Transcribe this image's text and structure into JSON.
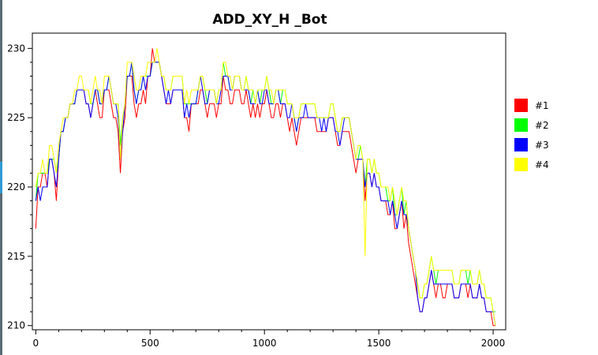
{
  "chart_data": {
    "type": "line",
    "title": "ADD_XY_H _Bot",
    "xlabel": "",
    "ylabel": "",
    "xlim": [
      -15,
      2055
    ],
    "ylim": [
      209.7,
      231.1
    ],
    "xticks": [
      0,
      500,
      1000,
      1500,
      2000
    ],
    "yticks": [
      210,
      215,
      220,
      225,
      230
    ],
    "grid": false,
    "legend_position": "right",
    "colors": {
      "#1": "#ff0000",
      "#2": "#00ff00",
      "#3": "#0000ff",
      "#4": "#ffff00",
      "plot_border": "#000000",
      "background": "#ffffff"
    },
    "x_step": 10,
    "series": [
      {
        "name": "#1",
        "color": "#ff0000",
        "values": [
          217,
          220,
          220,
          221,
          221,
          220,
          222,
          222,
          221,
          219,
          222,
          224,
          224,
          225,
          225,
          226,
          226,
          226,
          227,
          227,
          227,
          227,
          226,
          226,
          225,
          226,
          227,
          226,
          225,
          225,
          227,
          227,
          227,
          226,
          225,
          225,
          224,
          221,
          224,
          225,
          228,
          228,
          228,
          226,
          225,
          226,
          226,
          227,
          226,
          228,
          228,
          230,
          229,
          229,
          229,
          228,
          227,
          226,
          226,
          226,
          227,
          227,
          227,
          227,
          227,
          225,
          225,
          224,
          226,
          226,
          226,
          226,
          227,
          227,
          226,
          225,
          226,
          226,
          226,
          225,
          226,
          226,
          228,
          227,
          227,
          226,
          226,
          227,
          227,
          227,
          226,
          226,
          227,
          226,
          225,
          226,
          225,
          226,
          225,
          226,
          226,
          227,
          226,
          225,
          225,
          226,
          226,
          225,
          226,
          226,
          225,
          224,
          225,
          224,
          223,
          224,
          225,
          225,
          225,
          225,
          225,
          225,
          225,
          224,
          224,
          224,
          224,
          224,
          225,
          225,
          225,
          224,
          223,
          223,
          224,
          224,
          224,
          224,
          223,
          222,
          221,
          222,
          222,
          222,
          219,
          221,
          221,
          220,
          221,
          220,
          220,
          219,
          219,
          219,
          218,
          218,
          219,
          217,
          217,
          218,
          219,
          217,
          218,
          216,
          215,
          214,
          213,
          212,
          211,
          211,
          212,
          212,
          213,
          214,
          213,
          212,
          213,
          213,
          212,
          212,
          213,
          213,
          213,
          212,
          212,
          212,
          213,
          213,
          213,
          212,
          213,
          212,
          212,
          212,
          213,
          212,
          212,
          211,
          211,
          211,
          210,
          210
        ]
      },
      {
        "name": "#2",
        "color": "#00ff00",
        "values": [
          219,
          221,
          221,
          221,
          221,
          221,
          222,
          222,
          222,
          221,
          222,
          224,
          224,
          225,
          225,
          226,
          226,
          226,
          227,
          227,
          227,
          227,
          227,
          227,
          226,
          226,
          227,
          227,
          226,
          226,
          227,
          227,
          228,
          227,
          226,
          226,
          226,
          223,
          225,
          226,
          228,
          228,
          229,
          227,
          226,
          227,
          227,
          228,
          228,
          228,
          228,
          229,
          229,
          229,
          229,
          228,
          228,
          227,
          227,
          227,
          228,
          228,
          228,
          228,
          228,
          226,
          226,
          226,
          226,
          226,
          226,
          227,
          228,
          228,
          227,
          226,
          227,
          227,
          227,
          226,
          227,
          227,
          229,
          228,
          228,
          227,
          227,
          228,
          228,
          228,
          227,
          227,
          228,
          227,
          226,
          227,
          226,
          227,
          226,
          227,
          227,
          228,
          227,
          226,
          226,
          227,
          227,
          226,
          227,
          227,
          226,
          226,
          226,
          225,
          224,
          225,
          226,
          226,
          226,
          226,
          226,
          226,
          226,
          225,
          225,
          225,
          225,
          225,
          225,
          226,
          226,
          225,
          224,
          224,
          225,
          225,
          225,
          225,
          224,
          223,
          222,
          222,
          223,
          222,
          220,
          222,
          222,
          221,
          222,
          221,
          221,
          220,
          220,
          220,
          219,
          219,
          220,
          218,
          218,
          219,
          220,
          218,
          219,
          217,
          216,
          215,
          214,
          213,
          212,
          212,
          213,
          213,
          214,
          215,
          214,
          213,
          214,
          214,
          214,
          214,
          214,
          214,
          214,
          213,
          213,
          213,
          214,
          214,
          214,
          213,
          214,
          213,
          213,
          213,
          214,
          213,
          213,
          212,
          212,
          212,
          211,
          211
        ]
      },
      {
        "name": "#3",
        "color": "#0000ff",
        "values": [
          219,
          220,
          219,
          220,
          220,
          220,
          222,
          222,
          221,
          220,
          222,
          224,
          224,
          225,
          225,
          226,
          226,
          226,
          227,
          227,
          227,
          227,
          226,
          226,
          225,
          226,
          227,
          227,
          226,
          226,
          227,
          227,
          228,
          227,
          226,
          226,
          225,
          222,
          224,
          226,
          228,
          228,
          229,
          227,
          226,
          227,
          227,
          228,
          227,
          228,
          228,
          229,
          229,
          229,
          229,
          228,
          227,
          226,
          227,
          226,
          227,
          227,
          227,
          227,
          227,
          225,
          226,
          225,
          226,
          226,
          226,
          227,
          228,
          227,
          226,
          226,
          227,
          227,
          227,
          226,
          226,
          227,
          228,
          228,
          228,
          227,
          227,
          228,
          228,
          228,
          227,
          227,
          227,
          227,
          226,
          226,
          226,
          227,
          226,
          226,
          227,
          227,
          226,
          226,
          226,
          227,
          227,
          226,
          226,
          226,
          225,
          225,
          226,
          225,
          224,
          225,
          225,
          225,
          226,
          225,
          225,
          225,
          225,
          225,
          225,
          224,
          225,
          224,
          225,
          225,
          225,
          224,
          224,
          223,
          224,
          225,
          225,
          225,
          224,
          223,
          222,
          222,
          222,
          222,
          220,
          221,
          221,
          220,
          221,
          220,
          220,
          219,
          219,
          219,
          219,
          218,
          219,
          218,
          217,
          218,
          219,
          218,
          218,
          217,
          216,
          215,
          214,
          212,
          211,
          211,
          212,
          212,
          213,
          214,
          213,
          213,
          213,
          213,
          213,
          213,
          213,
          213,
          213,
          212,
          212,
          212,
          213,
          213,
          213,
          213,
          213,
          212,
          212,
          212,
          213,
          212,
          212,
          211,
          211,
          211,
          211,
          210
        ]
      },
      {
        "name": "#4",
        "color": "#ffff00",
        "values": [
          220,
          221,
          221,
          222,
          221,
          221,
          223,
          223,
          222,
          221,
          223,
          224,
          225,
          225,
          225,
          226,
          226,
          227,
          227,
          228,
          228,
          227,
          227,
          227,
          226,
          227,
          228,
          227,
          227,
          226,
          228,
          228,
          228,
          227,
          226,
          226,
          226,
          222,
          225,
          226,
          229,
          229,
          229,
          228,
          227,
          227,
          228,
          228,
          228,
          229,
          229,
          229,
          229,
          230,
          229,
          228,
          228,
          227,
          227,
          227,
          228,
          228,
          228,
          228,
          228,
          226,
          227,
          226,
          227,
          227,
          227,
          227,
          228,
          228,
          227,
          227,
          227,
          227,
          227,
          226,
          227,
          227,
          229,
          229,
          228,
          228,
          227,
          228,
          228,
          228,
          227,
          227,
          228,
          227,
          227,
          227,
          226,
          227,
          227,
          227,
          227,
          228,
          227,
          227,
          226,
          227,
          227,
          227,
          227,
          227,
          226,
          226,
          226,
          225,
          225,
          225,
          226,
          226,
          226,
          226,
          226,
          226,
          226,
          225,
          225,
          225,
          225,
          225,
          225,
          226,
          226,
          225,
          224,
          224,
          225,
          225,
          225,
          225,
          224,
          223,
          222,
          223,
          223,
          222,
          215,
          222,
          222,
          221,
          222,
          221,
          221,
          220,
          220,
          220,
          220,
          219,
          220,
          219,
          218,
          219,
          220,
          219,
          219,
          217,
          216,
          215,
          214,
          213,
          212,
          212,
          213,
          213,
          214,
          215,
          214,
          214,
          214,
          214,
          214,
          214,
          214,
          214,
          214,
          213,
          213,
          213,
          214,
          214,
          214,
          214,
          214,
          213,
          213,
          213,
          214,
          213,
          213,
          212,
          212,
          212,
          211,
          210
        ]
      }
    ]
  }
}
